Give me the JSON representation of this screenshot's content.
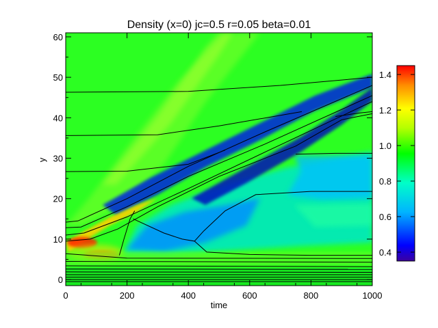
{
  "chart_data": {
    "type": "heatmap",
    "title": "Density (x=0) jc=0.5 r=0.05 beta=0.01",
    "xlabel": "time",
    "ylabel": "y",
    "xlim": [
      0,
      1000
    ],
    "ylim": [
      -1.5,
      61
    ],
    "x_ticks": [
      "0",
      "200",
      "400",
      "600",
      "800",
      "1000"
    ],
    "y_ticks": [
      "0",
      "10",
      "20",
      "30",
      "40",
      "50",
      "60"
    ],
    "colorbar": {
      "range": [
        0.35,
        1.45
      ],
      "ticks": [
        "0.4",
        "0.6",
        "0.8",
        "1.0",
        "1.2",
        "1.4"
      ],
      "colormap": "rainbow",
      "colors": [
        "#3c00a0",
        "#0000ff",
        "#00b4ff",
        "#00ffc8",
        "#00ff00",
        "#b4ff00",
        "#ffff00",
        "#ff8c00",
        "#ff0000"
      ]
    },
    "background_value": 0.98,
    "features": [
      {
        "name": "upper-front-wedge",
        "value": 1.02,
        "y_start": 14,
        "slope": 0.075
      },
      {
        "name": "blue-front-band",
        "value": 0.42,
        "y_start": 11,
        "slope": 0.036
      },
      {
        "name": "depleted-region",
        "value": 0.65,
        "y_range": [
          8,
          31
        ]
      },
      {
        "name": "upper-cyan-band",
        "value": 0.75,
        "y_range": [
          21,
          31
        ]
      },
      {
        "name": "red-hotspot",
        "value": 1.4,
        "x": 40,
        "y": 9.5
      },
      {
        "name": "red-hotspot-lower",
        "value": 1.38,
        "x": 110,
        "y": 7
      }
    ],
    "contours": [
      {
        "points": [
          [
            0,
            46.3
          ],
          [
            400,
            46.5
          ],
          [
            700,
            48.0
          ],
          [
            1000,
            50.0
          ]
        ]
      },
      {
        "points": [
          [
            0,
            35.6
          ],
          [
            300,
            35.8
          ],
          [
            500,
            38.0
          ],
          [
            770,
            41.5
          ]
        ]
      },
      {
        "points": [
          [
            0,
            26.7
          ],
          [
            200,
            26.8
          ],
          [
            400,
            28.5
          ],
          [
            520,
            32.0
          ]
        ]
      },
      {
        "points": [
          [
            0,
            14.2
          ],
          [
            40,
            14.5
          ],
          [
            200,
            20.0
          ],
          [
            400,
            28.0
          ],
          [
            650,
            36.5
          ],
          [
            1000,
            48.0
          ]
        ]
      },
      {
        "points": [
          [
            0,
            12.8
          ],
          [
            50,
            13.0
          ],
          [
            200,
            18.0
          ],
          [
            400,
            25.5
          ],
          [
            650,
            33.5
          ],
          [
            1000,
            45.5
          ]
        ]
      },
      {
        "points": [
          [
            0,
            11.0
          ],
          [
            60,
            11.5
          ],
          [
            200,
            15.5
          ],
          [
            400,
            22.5
          ],
          [
            650,
            31.5
          ],
          [
            1000,
            44.0
          ]
        ]
      },
      {
        "points": [
          [
            0,
            9.5
          ],
          [
            80,
            10.0
          ],
          [
            170,
            12.5
          ],
          [
            300,
            18.0
          ],
          [
            500,
            25.5
          ],
          [
            750,
            33.0
          ],
          [
            900,
            39.5
          ],
          [
            1000,
            41.0
          ]
        ]
      },
      {
        "points": [
          [
            220,
            15.0
          ],
          [
            320,
            11.5
          ],
          [
            380,
            10.0
          ],
          [
            420,
            9.5
          ],
          [
            450,
            12.0
          ],
          [
            520,
            17.0
          ],
          [
            620,
            21.0
          ],
          [
            800,
            21.8
          ],
          [
            1000,
            21.8
          ]
        ]
      },
      {
        "points": [
          [
            420,
            9.5
          ],
          [
            460,
            6.8
          ],
          [
            600,
            6.2
          ],
          [
            800,
            6.0
          ],
          [
            1000,
            6.0
          ]
        ]
      },
      {
        "points": [
          [
            175,
            6.0
          ],
          [
            190,
            10.0
          ],
          [
            210,
            15.0
          ],
          [
            225,
            17.0
          ]
        ]
      },
      {
        "points": [
          [
            750,
            31.0
          ],
          [
            880,
            31.2
          ],
          [
            1000,
            31.2
          ]
        ]
      },
      {
        "points": [
          [
            880,
            40.3
          ],
          [
            960,
            41.2
          ],
          [
            1000,
            41.5
          ]
        ]
      },
      {
        "points": [
          [
            0,
            6.4
          ],
          [
            200,
            5.3
          ],
          [
            1000,
            5.2
          ]
        ]
      },
      {
        "points": [
          [
            0,
            4.5
          ],
          [
            1000,
            4.3
          ]
        ]
      },
      {
        "points": [
          [
            0,
            3.4
          ],
          [
            1000,
            3.2
          ]
        ]
      },
      {
        "points": [
          [
            0,
            2.6
          ],
          [
            1000,
            2.5
          ]
        ]
      },
      {
        "points": [
          [
            0,
            1.9
          ],
          [
            1000,
            1.8
          ]
        ]
      },
      {
        "points": [
          [
            0,
            1.2
          ],
          [
            1000,
            1.2
          ]
        ]
      },
      {
        "points": [
          [
            0,
            0.6
          ],
          [
            1000,
            0.6
          ]
        ]
      },
      {
        "points": [
          [
            0,
            0.0
          ],
          [
            1000,
            0.0
          ]
        ]
      },
      {
        "points": [
          [
            0,
            -0.5
          ],
          [
            1000,
            -0.5
          ]
        ]
      }
    ]
  }
}
